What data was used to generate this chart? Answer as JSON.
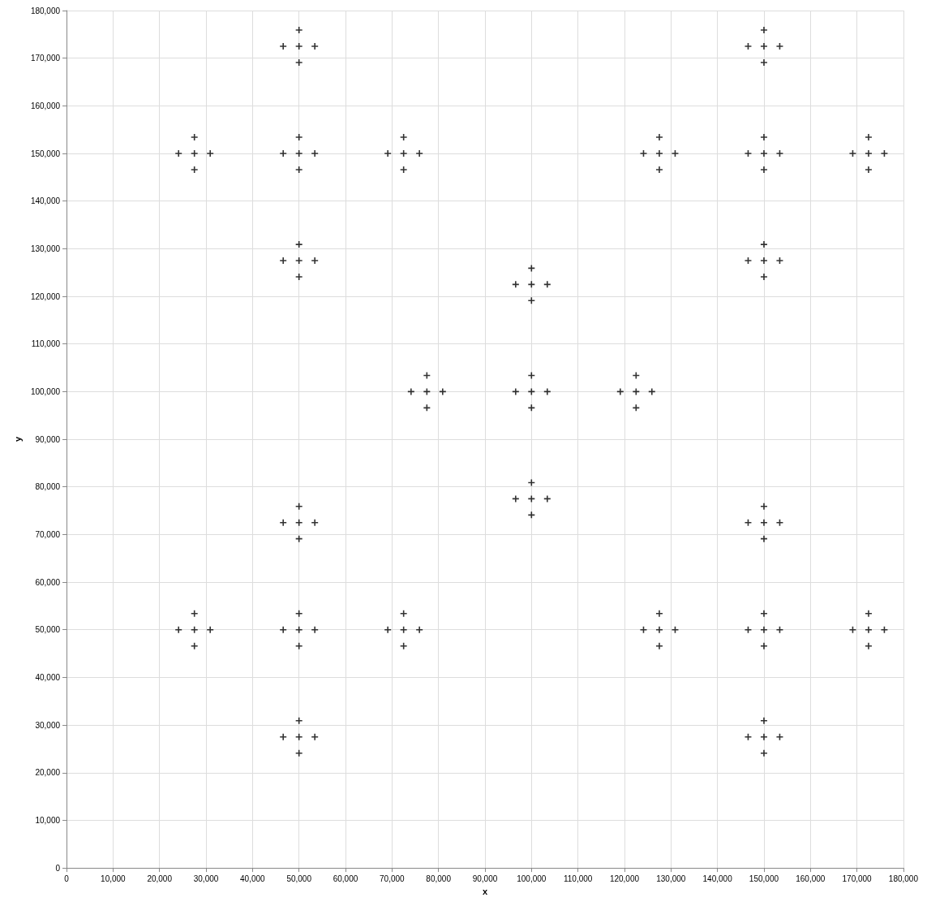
{
  "chart_data": {
    "type": "scatter",
    "xlabel": "x",
    "ylabel": "y",
    "marker": "cross",
    "grid": true,
    "xlim": [
      0,
      180000
    ],
    "ylim": [
      0,
      180000
    ],
    "xticks": [
      0,
      {
        "value": 10000,
        "label": "10,000"
      },
      {
        "value": 20000,
        "label": "20,000"
      },
      {
        "value": 30000,
        "label": "30,000"
      },
      {
        "value": 40000,
        "label": "40,000"
      },
      {
        "value": 50000,
        "label": "50,000"
      },
      {
        "value": 60000,
        "label": "60,000"
      },
      {
        "value": 70000,
        "label": "70,000"
      },
      {
        "value": 80000,
        "label": "80,000"
      },
      {
        "value": 90000,
        "label": "90,000"
      },
      {
        "value": 100000,
        "label": "100,000"
      },
      {
        "value": 110000,
        "label": "110,000"
      },
      {
        "value": 120000,
        "label": "120,000"
      },
      {
        "value": 130000,
        "label": "130,000"
      },
      {
        "value": 140000,
        "label": "140,000"
      },
      {
        "value": 150000,
        "label": "150,000"
      },
      {
        "value": 160000,
        "label": "160,000"
      },
      {
        "value": 170000,
        "label": "170,000"
      },
      {
        "value": 180000,
        "label": "180,000"
      }
    ],
    "yticks": [
      0,
      {
        "value": 10000,
        "label": "10,000"
      },
      {
        "value": 20000,
        "label": "20,000"
      },
      {
        "value": 30000,
        "label": "30,000"
      },
      {
        "value": 40000,
        "label": "40,000"
      },
      {
        "value": 50000,
        "label": "50,000"
      },
      {
        "value": 60000,
        "label": "60,000"
      },
      {
        "value": 70000,
        "label": "70,000"
      },
      {
        "value": 80000,
        "label": "80,000"
      },
      {
        "value": 90000,
        "label": "90,000"
      },
      {
        "value": 100000,
        "label": "100,000"
      },
      {
        "value": 110000,
        "label": "110,000"
      },
      {
        "value": 120000,
        "label": "120,000"
      },
      {
        "value": 130000,
        "label": "130,000"
      },
      {
        "value": 140000,
        "label": "140,000"
      },
      {
        "value": 150000,
        "label": "150,000"
      },
      {
        "value": 160000,
        "label": "160,000"
      },
      {
        "value": 170000,
        "label": "170,000"
      },
      {
        "value": 180000,
        "label": "180,000"
      }
    ],
    "series": [
      {
        "color": "#000000",
        "x": [
          50000,
          46600,
          53400,
          50000,
          50000,
          150000,
          146600,
          153400,
          150000,
          150000,
          27500,
          24100,
          30900,
          27500,
          27500,
          50000,
          46600,
          53400,
          50000,
          50000,
          72500,
          69100,
          75900,
          72500,
          72500,
          127500,
          124100,
          130900,
          127500,
          127500,
          150000,
          146600,
          153400,
          150000,
          150000,
          172500,
          169100,
          175900,
          172500,
          172500,
          50000,
          46600,
          53400,
          50000,
          50000,
          150000,
          146600,
          153400,
          150000,
          150000,
          100000,
          96600,
          103400,
          100000,
          100000,
          77500,
          74100,
          80900,
          77500,
          77500,
          100000,
          96600,
          103400,
          100000,
          100000,
          122500,
          119100,
          125900,
          122500,
          122500,
          100000,
          96600,
          103400,
          100000,
          100000,
          50000,
          46600,
          53400,
          50000,
          50000,
          150000,
          146600,
          153400,
          150000,
          150000,
          27500,
          24100,
          30900,
          27500,
          27500,
          50000,
          46600,
          53400,
          50000,
          50000,
          72500,
          69100,
          75900,
          72500,
          72500,
          127500,
          124100,
          130900,
          127500,
          127500,
          150000,
          146600,
          153400,
          150000,
          150000,
          172500,
          169100,
          175900,
          172500,
          172500,
          50000,
          46600,
          53400,
          50000,
          50000,
          150000,
          146600,
          153400,
          150000,
          150000
        ],
        "values": [
          172500,
          172500,
          172500,
          175900,
          169100,
          172500,
          172500,
          172500,
          175900,
          169100,
          150000,
          150000,
          150000,
          153400,
          146600,
          150000,
          150000,
          150000,
          153400,
          146600,
          150000,
          150000,
          150000,
          153400,
          146600,
          150000,
          150000,
          150000,
          153400,
          146600,
          150000,
          150000,
          150000,
          153400,
          146600,
          150000,
          150000,
          150000,
          153400,
          146600,
          127500,
          127500,
          127500,
          130900,
          124100,
          127500,
          127500,
          127500,
          130900,
          124100,
          122500,
          122500,
          122500,
          125900,
          119100,
          100000,
          100000,
          100000,
          103400,
          96600,
          100000,
          100000,
          100000,
          103400,
          96600,
          100000,
          100000,
          100000,
          103400,
          96600,
          77500,
          77500,
          77500,
          80900,
          74100,
          72500,
          72500,
          72500,
          75900,
          69100,
          72500,
          72500,
          72500,
          75900,
          69100,
          50000,
          50000,
          50000,
          53400,
          46600,
          50000,
          50000,
          50000,
          53400,
          46600,
          50000,
          50000,
          50000,
          53400,
          46600,
          50000,
          50000,
          50000,
          53400,
          46600,
          50000,
          50000,
          50000,
          53400,
          46600,
          50000,
          50000,
          50000,
          53400,
          46600,
          27500,
          27500,
          27500,
          30900,
          24100,
          27500,
          27500,
          27500,
          30900,
          24100
        ]
      }
    ]
  }
}
